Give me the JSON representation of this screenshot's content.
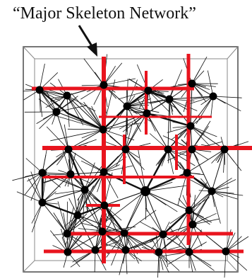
{
  "caption": "“Major Skeleton Network”",
  "colors": {
    "skeleton": "#e8141e",
    "edges": "#111111",
    "nodes": "#000000",
    "frame": "#555555",
    "frame_inner": "#888888"
  }
}
